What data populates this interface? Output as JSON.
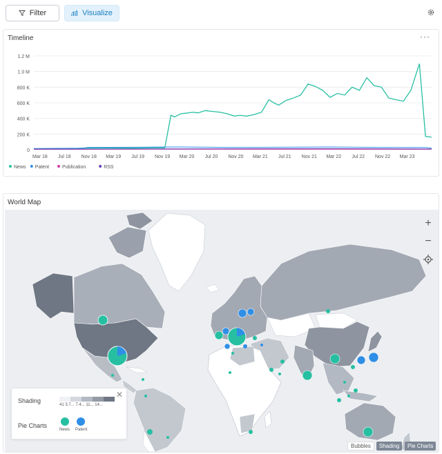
{
  "toolbar": {
    "filter_label": "Filter",
    "visualize_label": "Visualize"
  },
  "timeline": {
    "title": "Timeline",
    "more": "···"
  },
  "map": {
    "title": "World Map",
    "zoom_in": "+",
    "zoom_out": "−",
    "legend": {
      "shading_label": "Shading",
      "shading_ticks": "41  3.7... 7.4... 11... 14...",
      "shading_colors": [
        "#f0f2f5",
        "#d4d8de",
        "#b3b9c2",
        "#939aa5",
        "#6f7785"
      ],
      "pie_label": "Pie Charts",
      "news_label": "News",
      "patent_label": "Patent",
      "news_color": "#26bfa2",
      "patent_color": "#2f8fe6"
    },
    "modes": {
      "bubbles": "Bubbles",
      "shading": "Shading",
      "pie": "Pie Charts"
    }
  },
  "chart_data": {
    "type": "line",
    "title": "Timeline",
    "x": [
      "Mar 18",
      "Jul 18",
      "Nov 18",
      "Mar 19",
      "Jul 19",
      "Nov 19",
      "Mar 20",
      "Jul 20",
      "Nov 20",
      "Mar 21",
      "Jul 21",
      "Nov 21",
      "Mar 22",
      "Jul 22",
      "Nov 22",
      "Mar 23"
    ],
    "y_ticks": [
      "0",
      "200 K",
      "400 K",
      "600 K",
      "800 K",
      "1.0 M",
      "1.2 M"
    ],
    "ylim": [
      0,
      1200000
    ],
    "series": [
      {
        "name": "News",
        "color": "#26bfa2",
        "points": [
          [
            0,
            10000
          ],
          [
            0.6,
            12000
          ],
          [
            1,
            15000
          ],
          [
            1.8,
            18000
          ],
          [
            2,
            20000
          ],
          [
            3,
            22000
          ],
          [
            4,
            20000
          ],
          [
            5,
            25000
          ],
          [
            5.35,
            25000
          ],
          [
            5.6,
            440000
          ],
          [
            5.75,
            420000
          ],
          [
            6,
            460000
          ],
          [
            6.3,
            470000
          ],
          [
            6.5,
            480000
          ],
          [
            6.7,
            470000
          ],
          [
            7,
            500000
          ],
          [
            7.3,
            490000
          ],
          [
            7.6,
            480000
          ],
          [
            7.9,
            460000
          ],
          [
            8.2,
            430000
          ],
          [
            8.4,
            440000
          ],
          [
            8.7,
            430000
          ],
          [
            9,
            450000
          ],
          [
            9.3,
            480000
          ],
          [
            9.6,
            640000
          ],
          [
            9.8,
            600000
          ],
          [
            10,
            570000
          ],
          [
            10.3,
            630000
          ],
          [
            10.6,
            660000
          ],
          [
            10.9,
            700000
          ],
          [
            11.2,
            840000
          ],
          [
            11.5,
            810000
          ],
          [
            11.8,
            760000
          ],
          [
            12.1,
            670000
          ],
          [
            12.4,
            720000
          ],
          [
            12.7,
            700000
          ],
          [
            13,
            800000
          ],
          [
            13.3,
            760000
          ],
          [
            13.6,
            920000
          ],
          [
            13.9,
            820000
          ],
          [
            14.2,
            800000
          ],
          [
            14.5,
            660000
          ],
          [
            14.8,
            640000
          ],
          [
            15.1,
            620000
          ],
          [
            15.4,
            760000
          ],
          [
            15.75,
            1100000
          ],
          [
            16.0,
            170000
          ],
          [
            16.25,
            160000
          ]
        ]
      },
      {
        "name": "Patent",
        "color": "#2f8fe6",
        "points": [
          [
            0,
            15000
          ],
          [
            2,
            20000
          ],
          [
            2.2,
            30000
          ],
          [
            4,
            32000
          ],
          [
            6,
            35000
          ],
          [
            8,
            30000
          ],
          [
            10,
            32000
          ],
          [
            12,
            35000
          ],
          [
            14,
            30000
          ],
          [
            16,
            28000
          ],
          [
            16.25,
            20000
          ]
        ]
      },
      {
        "name": "Publication",
        "color": "#d63aa0",
        "points": [
          [
            0,
            5000
          ],
          [
            4,
            6000
          ],
          [
            8,
            6000
          ],
          [
            12,
            7000
          ],
          [
            16.25,
            5000
          ]
        ]
      },
      {
        "name": "RSS",
        "color": "#6a3fb7",
        "points": [
          [
            0,
            8000
          ],
          [
            4,
            10000
          ],
          [
            8,
            12000
          ],
          [
            12,
            14000
          ],
          [
            16.25,
            10000
          ]
        ]
      }
    ]
  }
}
